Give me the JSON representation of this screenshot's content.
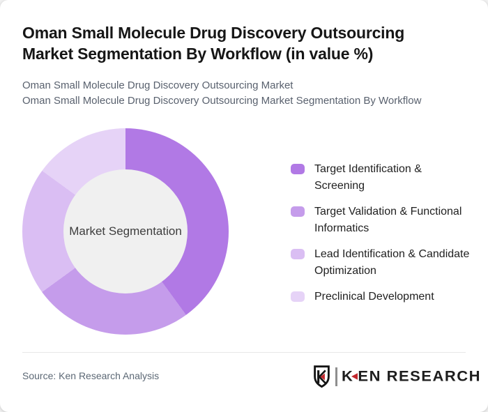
{
  "header": {
    "title": "Oman Small Molecule Drug Discovery Outsourcing Market Segmentation By Workflow (in value %)",
    "subtitle_line1": "Oman Small Molecule Drug Discovery Outsourcing Market",
    "subtitle_line2": "Oman Small Molecule Drug Discovery Outsourcing Market Segmentation By Workflow"
  },
  "chart_data": {
    "type": "pie",
    "variant": "donut",
    "title": "Oman Small Molecule Drug Discovery Outsourcing Market Segmentation By Workflow (in value %)",
    "center_label": "Market Segmentation",
    "categories": [
      "Target Identification & Screening",
      "Target Validation & Functional Informatics",
      "Lead Identification & Candidate Optimization",
      "Preclinical Development"
    ],
    "values": [
      40,
      25,
      20,
      15
    ],
    "unit": "percent (estimated from arc angles; no data labels shown)",
    "colors": [
      "#b179e5",
      "#c59ceb",
      "#dabef3",
      "#e6d3f7"
    ],
    "start_angle_deg": 0,
    "direction": "clockwise",
    "hole_ratio": 0.6,
    "hole_color": "#f0f0f0",
    "legend_position": "right",
    "grid": false
  },
  "legend": {
    "items": [
      {
        "label": "Target Identification & Screening",
        "color": "#b179e5"
      },
      {
        "label": "Target Validation & Functional Informatics",
        "color": "#c59ceb"
      },
      {
        "label": "Lead Identification & Candidate Optimization",
        "color": "#dabef3"
      },
      {
        "label": "Preclinical Development",
        "color": "#e6d3f7"
      }
    ]
  },
  "footer": {
    "source": "Source: Ken Research Analysis",
    "logo": {
      "brand_k": "K",
      "brand_rest": "EN RESEARCH",
      "emblem": "ken-shield-icon",
      "accent_red": "#c1272d",
      "text_color": "#1e1e1e"
    }
  }
}
